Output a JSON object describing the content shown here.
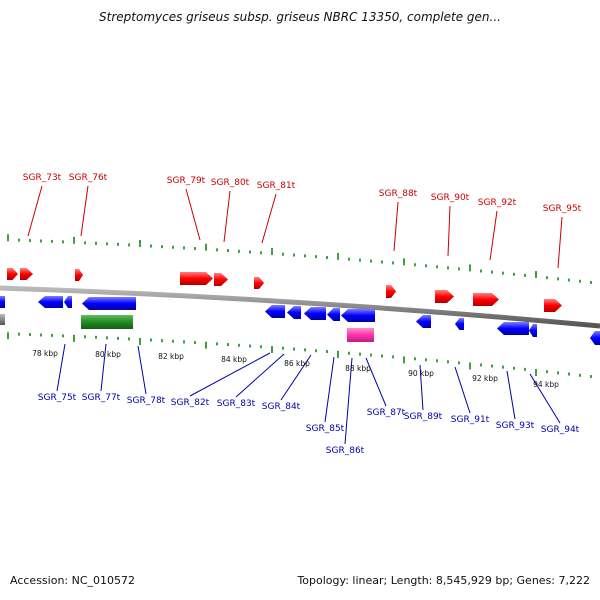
{
  "title": "Streptomyces griseus subsp. griseus NBRC 13350, complete gen...",
  "footer": {
    "accession": "Accession: NC_010572",
    "summary": "Topology: linear; Length: 8,545,929 bp; Genes: 7,222"
  },
  "colors": {
    "top_labels": "#cc0000",
    "bottom_labels": "#0000aa",
    "forward_genes": "#ff0000",
    "reverse_genes": "#0000ff",
    "rrna_feature": "#228b22",
    "pink_feature": "#ff33aa",
    "backbone": "#888888",
    "ticks": "#118811"
  },
  "scale_ticks": [
    "78 kbp",
    "80 kbp",
    "82 kbp",
    "84 kbp",
    "86 kbp",
    "88 kbp",
    "90 kbp",
    "92 kbp",
    "94 kbp"
  ],
  "top_labels": [
    "SGR_73t",
    "SGR_76t",
    "SGR_79t",
    "SGR_80t",
    "SGR_81t",
    "SGR_88t",
    "SGR_90t",
    "SGR_92t",
    "SGR_95t"
  ],
  "bottom_labels": [
    "SGR_75t",
    "SGR_77t",
    "SGR_78t",
    "SGR_82t",
    "SGR_83t",
    "SGR_84t",
    "SGR_85t",
    "SGR_86t",
    "SGR_87t",
    "SGR_89t",
    "SGR_91t",
    "SGR_93t",
    "SGR_94t"
  ]
}
